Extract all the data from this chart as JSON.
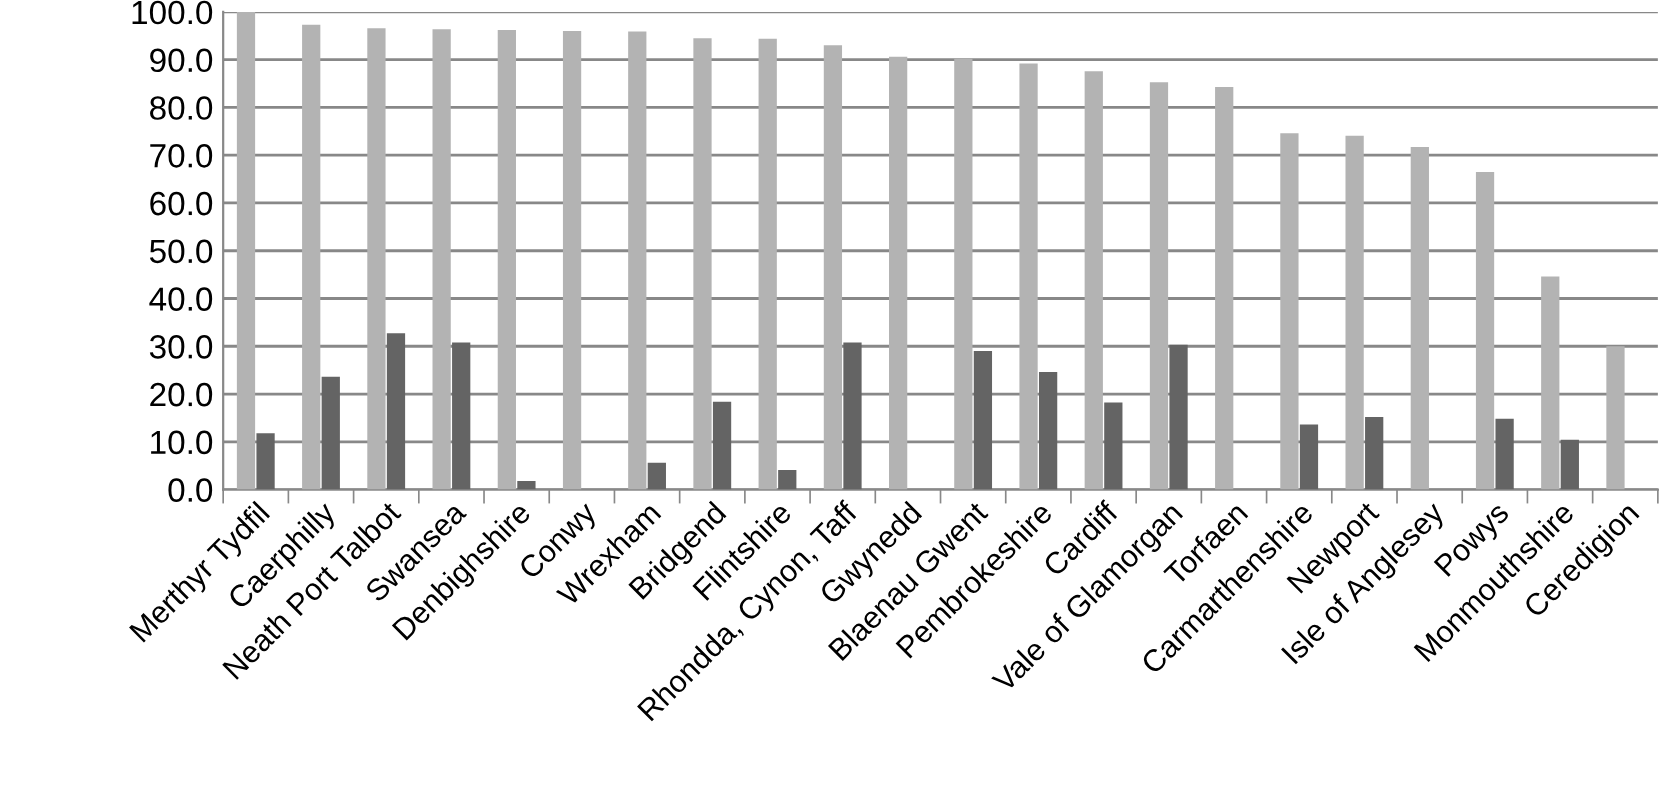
{
  "chart_data": {
    "type": "bar",
    "categories": [
      "Merthyr Tydfil",
      "Caerphilly",
      "Neath Port Talbot",
      "Swansea",
      "Denbighshire",
      "Conwy",
      "Wrexham",
      "Bridgend",
      "Flintshire",
      "Rhondda, Cynon, Taff",
      "Gwynedd",
      "Blaenau Gwent",
      "Pembrokeshire",
      "Cardiff",
      "Vale of Glamorgan",
      "Torfaen",
      "Carmarthenshire",
      "Newport",
      "Isle of Anglesey",
      "Powys",
      "Monmouthshire",
      "Ceredigion"
    ],
    "series": [
      {
        "color": "#b3b3b3",
        "values": [
          100.0,
          97.3,
          96.6,
          96.4,
          96.2,
          96.0,
          95.9,
          94.5,
          94.4,
          93.0,
          90.6,
          90.2,
          89.2,
          87.6,
          85.3,
          84.3,
          74.6,
          74.1,
          71.7,
          66.5,
          44.6,
          30.0
        ]
      },
      {
        "color": "#646464",
        "values": [
          11.8,
          23.6,
          32.7,
          30.8,
          1.8,
          null,
          5.6,
          18.4,
          4.1,
          30.8,
          null,
          29.0,
          24.6,
          18.2,
          30.3,
          null,
          13.6,
          15.2,
          null,
          14.8,
          10.4,
          null
        ]
      }
    ],
    "ylim": [
      0,
      100
    ],
    "yticks": [
      {
        "value": 0,
        "label": "0.0"
      },
      {
        "value": 10,
        "label": "10.0"
      },
      {
        "value": 20,
        "label": "20.0"
      },
      {
        "value": 30,
        "label": "30.0"
      },
      {
        "value": 40,
        "label": "40.0"
      },
      {
        "value": 50,
        "label": "50.0"
      },
      {
        "value": 60,
        "label": "60.0"
      },
      {
        "value": 70,
        "label": "70.0"
      },
      {
        "value": 80,
        "label": "80.0"
      },
      {
        "value": 90,
        "label": "90.0"
      },
      {
        "value": 100,
        "label": "100.0"
      }
    ],
    "grid": "y",
    "legend": false
  }
}
